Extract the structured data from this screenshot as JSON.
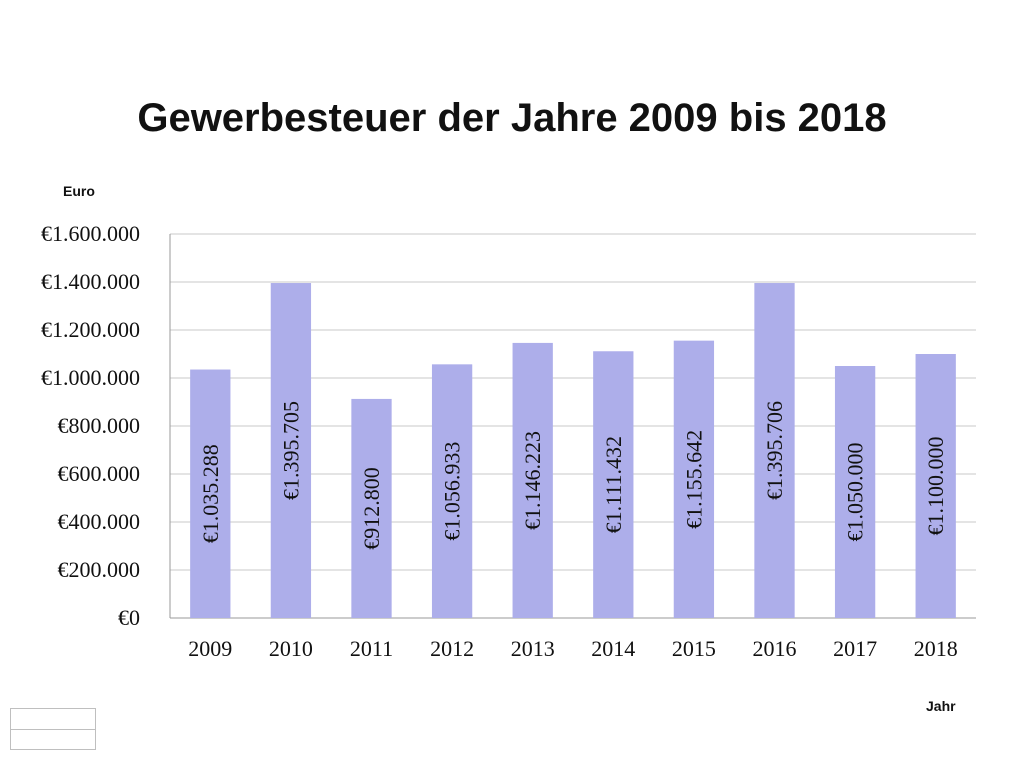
{
  "chart_data": {
    "type": "bar",
    "title": "Gewerbesteuer der Jahre 2009 bis 2018",
    "ylabel": "Euro",
    "xlabel": "Jahr",
    "categories": [
      "2009",
      "2010",
      "2011",
      "2012",
      "2013",
      "2014",
      "2015",
      "2016",
      "2017",
      "2018"
    ],
    "values": [
      1035288,
      1395705,
      912800,
      1056933,
      1146223,
      1111432,
      1155642,
      1395706,
      1050000,
      1100000
    ],
    "data_labels": [
      "€1.035.288",
      "€1.395.705",
      "€912.800",
      "€1.056.933",
      "€1.146.223",
      "€1.111.432",
      "€1.155.642",
      "€1.395.706",
      "€1.050.000",
      "€1.100.000"
    ],
    "ylim": [
      0,
      1600000
    ],
    "yticks": [
      0,
      200000,
      400000,
      600000,
      800000,
      1000000,
      1200000,
      1400000,
      1600000
    ],
    "ytick_labels": [
      "€0",
      "€200.000",
      "€400.000",
      "€600.000",
      "€800.000",
      "€1.000.000",
      "€1.200.000",
      "€1.400.000",
      "€1.600.000"
    ],
    "grid": true,
    "bar_color": "#adaeea",
    "gridline_color": "#c8c8c8"
  }
}
